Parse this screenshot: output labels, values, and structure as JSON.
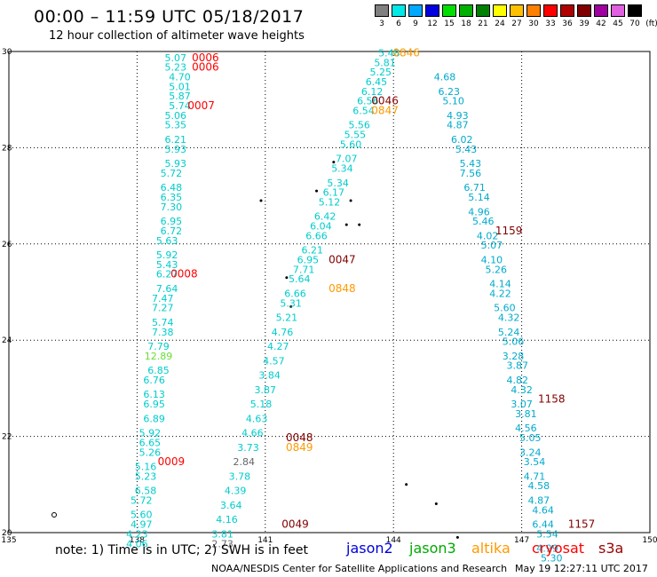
{
  "header": {
    "title": "00:00 – 11:59 UTC 05/18/2017",
    "subtitle": "12 hour collection of altimeter wave heights"
  },
  "color_scale": {
    "unit": "(ft)",
    "bins": [
      {
        "label": "3",
        "color": "#808080"
      },
      {
        "label": "6",
        "color": "#00e8e8"
      },
      {
        "label": "9",
        "color": "#00a8ff"
      },
      {
        "label": "12",
        "color": "#0000e0"
      },
      {
        "label": "15",
        "color": "#00e000"
      },
      {
        "label": "18",
        "color": "#00b000"
      },
      {
        "label": "21",
        "color": "#008000"
      },
      {
        "label": "24",
        "color": "#ffff00"
      },
      {
        "label": "27",
        "color": "#ffc000"
      },
      {
        "label": "30",
        "color": "#ff8000"
      },
      {
        "label": "33",
        "color": "#ff0000"
      },
      {
        "label": "36",
        "color": "#b00000"
      },
      {
        "label": "39",
        "color": "#800000"
      },
      {
        "label": "42",
        "color": "#a000a0"
      },
      {
        "label": "45",
        "color": "#e060e0"
      },
      {
        "label": "70",
        "color": "#000000"
      }
    ]
  },
  "map": {
    "lon_ticks": [
      "135",
      "138",
      "141",
      "144",
      "147",
      "150"
    ],
    "lat_ticks": [
      "20",
      "22",
      "24",
      "26",
      "28",
      "30"
    ]
  },
  "time_labels": [
    {
      "text": "0006",
      "color": "#ff0000",
      "lon": 139.6,
      "lat": 29.8
    },
    {
      "text": "0006",
      "color": "#ff0000",
      "lon": 139.6,
      "lat": 29.6
    },
    {
      "text": "0007",
      "color": "#ff0000",
      "lon": 139.5,
      "lat": 28.8
    },
    {
      "text": "0008",
      "color": "#ff0000",
      "lon": 139.1,
      "lat": 25.3
    },
    {
      "text": "0009",
      "color": "#ff0000",
      "lon": 138.8,
      "lat": 21.4
    },
    {
      "text": "0046",
      "color": "#800000",
      "lon": 143.8,
      "lat": 28.9
    },
    {
      "text": "0047",
      "color": "#800000",
      "lon": 142.8,
      "lat": 25.6
    },
    {
      "text": "0048",
      "color": "#800000",
      "lon": 141.8,
      "lat": 21.9
    },
    {
      "text": "0049",
      "color": "#800000",
      "lon": 141.7,
      "lat": 20.1
    },
    {
      "text": "0846",
      "color": "#ff9900",
      "lon": 144.3,
      "lat": 29.9
    },
    {
      "text": "0847",
      "color": "#ff9900",
      "lon": 143.8,
      "lat": 28.7
    },
    {
      "text": "0848",
      "color": "#ff9900",
      "lon": 142.8,
      "lat": 25.0
    },
    {
      "text": "0849",
      "color": "#ff9900",
      "lon": 141.8,
      "lat": 21.7
    },
    {
      "text": "1159",
      "color": "#800000",
      "lon": 146.7,
      "lat": 26.2
    },
    {
      "text": "1158",
      "color": "#800000",
      "lon": 147.7,
      "lat": 22.7
    },
    {
      "text": "1157",
      "color": "#800000",
      "lon": 148.4,
      "lat": 20.1
    }
  ],
  "tracks": [
    {
      "name": "pass-0006",
      "color": "#00cccc",
      "points": [
        {
          "lon": 138.9,
          "lat": 29.8,
          "swh": "5.07"
        },
        {
          "lon": 138.9,
          "lat": 29.6,
          "swh": "5.23"
        },
        {
          "lon": 139.0,
          "lat": 29.4,
          "swh": "4.70"
        },
        {
          "lon": 139.0,
          "lat": 29.2,
          "swh": "5.01"
        },
        {
          "lon": 139.0,
          "lat": 29.0,
          "swh": "5.87"
        },
        {
          "lon": 139.0,
          "lat": 28.8,
          "swh": "5.74"
        },
        {
          "lon": 138.9,
          "lat": 28.6,
          "swh": "5.06"
        },
        {
          "lon": 138.9,
          "lat": 28.4,
          "swh": "5.35"
        },
        {
          "lon": 138.9,
          "lat": 28.1,
          "swh": "6.21"
        },
        {
          "lon": 138.9,
          "lat": 27.9,
          "swh": "5.93"
        },
        {
          "lon": 138.9,
          "lat": 27.6,
          "swh": "5.93"
        },
        {
          "lon": 138.8,
          "lat": 27.4,
          "swh": "5.72"
        },
        {
          "lon": 138.8,
          "lat": 27.1,
          "swh": "6.48"
        },
        {
          "lon": 138.8,
          "lat": 26.9,
          "swh": "6.35"
        },
        {
          "lon": 138.8,
          "lat": 26.7,
          "swh": "7.30"
        },
        {
          "lon": 138.8,
          "lat": 26.4,
          "swh": "6.95"
        },
        {
          "lon": 138.8,
          "lat": 26.2,
          "swh": "6.72"
        },
        {
          "lon": 138.7,
          "lat": 26.0,
          "swh": "5.63"
        },
        {
          "lon": 138.7,
          "lat": 25.7,
          "swh": "5.92"
        },
        {
          "lon": 138.7,
          "lat": 25.5,
          "swh": "5.43"
        },
        {
          "lon": 138.7,
          "lat": 25.3,
          "swh": "6.27"
        },
        {
          "lon": 138.7,
          "lat": 25.0,
          "swh": "7.64"
        },
        {
          "lon": 138.6,
          "lat": 24.8,
          "swh": "7.47"
        },
        {
          "lon": 138.6,
          "lat": 24.6,
          "swh": "7.27"
        },
        {
          "lon": 138.6,
          "lat": 24.3,
          "swh": "5.74"
        },
        {
          "lon": 138.6,
          "lat": 24.1,
          "swh": "7.38"
        },
        {
          "lon": 138.5,
          "lat": 23.8,
          "swh": "7.79"
        },
        {
          "lon": 138.5,
          "lat": 23.6,
          "swh": "12.89",
          "color": "#66dd33"
        },
        {
          "lon": 138.5,
          "lat": 23.3,
          "swh": "6.85"
        },
        {
          "lon": 138.4,
          "lat": 23.1,
          "swh": "6.76"
        },
        {
          "lon": 138.4,
          "lat": 22.8,
          "swh": "6.13"
        },
        {
          "lon": 138.4,
          "lat": 22.6,
          "swh": "6.95"
        },
        {
          "lon": 138.4,
          "lat": 22.3,
          "swh": "6.89"
        },
        {
          "lon": 138.3,
          "lat": 22.0,
          "swh": "5.92"
        },
        {
          "lon": 138.3,
          "lat": 21.8,
          "swh": "6.65"
        },
        {
          "lon": 138.3,
          "lat": 21.6,
          "swh": "5.26"
        },
        {
          "lon": 138.2,
          "lat": 21.3,
          "swh": "5.16"
        },
        {
          "lon": 138.2,
          "lat": 21.1,
          "swh": "5.23"
        },
        {
          "lon": 138.2,
          "lat": 20.8,
          "swh": "6.58"
        },
        {
          "lon": 138.1,
          "lat": 20.6,
          "swh": "5.72"
        },
        {
          "lon": 138.1,
          "lat": 20.3,
          "swh": "5.60"
        },
        {
          "lon": 138.1,
          "lat": 20.1,
          "swh": "4.97"
        },
        {
          "lon": 138.0,
          "lat": 19.9,
          "swh": "4.23"
        },
        {
          "lon": 138.0,
          "lat": 19.7,
          "swh": "4.06"
        }
      ]
    },
    {
      "name": "pass-0046",
      "color": "#00cccc",
      "points": [
        {
          "lon": 143.9,
          "lat": 29.9,
          "swh": "5.48"
        },
        {
          "lon": 143.8,
          "lat": 29.7,
          "swh": "5.81"
        },
        {
          "lon": 143.7,
          "lat": 29.5,
          "swh": "5.25"
        },
        {
          "lon": 143.6,
          "lat": 29.3,
          "swh": "6.45"
        },
        {
          "lon": 143.5,
          "lat": 29.1,
          "swh": "6.12"
        },
        {
          "lon": 143.4,
          "lat": 28.9,
          "swh": "6.56"
        },
        {
          "lon": 143.3,
          "lat": 28.7,
          "swh": "6.54"
        },
        {
          "lon": 143.2,
          "lat": 28.4,
          "swh": "5.56"
        },
        {
          "lon": 143.1,
          "lat": 28.2,
          "swh": "5.55"
        },
        {
          "lon": 143.0,
          "lat": 28.0,
          "swh": "5.60"
        },
        {
          "lon": 142.9,
          "lat": 27.7,
          "swh": "7.07"
        },
        {
          "lon": 142.8,
          "lat": 27.5,
          "swh": "5.34"
        },
        {
          "lon": 142.7,
          "lat": 27.2,
          "swh": "5.34"
        },
        {
          "lon": 142.6,
          "lat": 27.0,
          "swh": "6.17"
        },
        {
          "lon": 142.5,
          "lat": 26.8,
          "swh": "5.12"
        },
        {
          "lon": 142.4,
          "lat": 26.5,
          "swh": "6.42"
        },
        {
          "lon": 142.3,
          "lat": 26.3,
          "swh": "6.04"
        },
        {
          "lon": 142.2,
          "lat": 26.1,
          "swh": "6.66"
        },
        {
          "lon": 142.1,
          "lat": 25.8,
          "swh": "6.21"
        },
        {
          "lon": 142.0,
          "lat": 25.6,
          "swh": "6.95"
        },
        {
          "lon": 141.9,
          "lat": 25.4,
          "swh": "7.71"
        },
        {
          "lon": 141.8,
          "lat": 25.2,
          "swh": "5.64"
        },
        {
          "lon": 141.7,
          "lat": 24.9,
          "swh": "6.66"
        },
        {
          "lon": 141.6,
          "lat": 24.7,
          "swh": "5.31"
        },
        {
          "lon": 141.5,
          "lat": 24.4,
          "swh": "5.21"
        },
        {
          "lon": 141.4,
          "lat": 24.1,
          "swh": "4.76"
        },
        {
          "lon": 141.3,
          "lat": 23.8,
          "swh": "4.27"
        },
        {
          "lon": 141.2,
          "lat": 23.5,
          "swh": "4.57"
        },
        {
          "lon": 141.1,
          "lat": 23.2,
          "swh": "3.84"
        },
        {
          "lon": 141.0,
          "lat": 22.9,
          "swh": "3.87"
        },
        {
          "lon": 140.9,
          "lat": 22.6,
          "swh": "5.18"
        },
        {
          "lon": 140.8,
          "lat": 22.3,
          "swh": "4.63"
        },
        {
          "lon": 140.7,
          "lat": 22.0,
          "swh": "4.66"
        },
        {
          "lon": 140.6,
          "lat": 21.7,
          "swh": "3.73"
        },
        {
          "lon": 140.5,
          "lat": 21.4,
          "swh": "2.84",
          "color": "#666666"
        },
        {
          "lon": 140.4,
          "lat": 21.1,
          "swh": "3.78"
        },
        {
          "lon": 140.3,
          "lat": 20.8,
          "swh": "4.39"
        },
        {
          "lon": 140.2,
          "lat": 20.5,
          "swh": "3.64"
        },
        {
          "lon": 140.1,
          "lat": 20.2,
          "swh": "4.16"
        },
        {
          "lon": 140.0,
          "lat": 19.9,
          "swh": "3.81"
        },
        {
          "lon": 140.0,
          "lat": 19.7,
          "swh": "2.73",
          "color": "#666666"
        }
      ]
    },
    {
      "name": "pass-1159",
      "color": "#00aacc",
      "points": [
        {
          "lon": 145.2,
          "lat": 29.4,
          "swh": "4.68"
        },
        {
          "lon": 145.3,
          "lat": 29.1,
          "swh": "6.23"
        },
        {
          "lon": 145.4,
          "lat": 28.9,
          "swh": "5.10"
        },
        {
          "lon": 145.5,
          "lat": 28.6,
          "swh": "4.93"
        },
        {
          "lon": 145.5,
          "lat": 28.4,
          "swh": "4.87"
        },
        {
          "lon": 145.6,
          "lat": 28.1,
          "swh": "6.02"
        },
        {
          "lon": 145.7,
          "lat": 27.9,
          "swh": "5.43"
        },
        {
          "lon": 145.8,
          "lat": 27.6,
          "swh": "5.43"
        },
        {
          "lon": 145.8,
          "lat": 27.4,
          "swh": "7.56"
        },
        {
          "lon": 145.9,
          "lat": 27.1,
          "swh": "6.71"
        },
        {
          "lon": 146.0,
          "lat": 26.9,
          "swh": "5.14"
        },
        {
          "lon": 146.0,
          "lat": 26.6,
          "swh": "4.96"
        },
        {
          "lon": 146.1,
          "lat": 26.4,
          "swh": "5.46"
        },
        {
          "lon": 146.2,
          "lat": 26.1,
          "swh": "4.02"
        },
        {
          "lon": 146.3,
          "lat": 25.9,
          "swh": "5.07"
        },
        {
          "lon": 146.3,
          "lat": 25.6,
          "swh": "4.10"
        },
        {
          "lon": 146.4,
          "lat": 25.4,
          "swh": "5.26"
        },
        {
          "lon": 146.5,
          "lat": 25.1,
          "swh": "4.14"
        },
        {
          "lon": 146.5,
          "lat": 24.9,
          "swh": "4.22"
        },
        {
          "lon": 146.6,
          "lat": 24.6,
          "swh": "5.60"
        },
        {
          "lon": 146.7,
          "lat": 24.4,
          "swh": "4.32"
        },
        {
          "lon": 146.7,
          "lat": 24.1,
          "swh": "5.24"
        },
        {
          "lon": 146.8,
          "lat": 23.9,
          "swh": "5.06"
        },
        {
          "lon": 146.8,
          "lat": 23.6,
          "swh": "3.28"
        },
        {
          "lon": 146.9,
          "lat": 23.4,
          "swh": "3.87"
        },
        {
          "lon": 146.9,
          "lat": 23.1,
          "swh": "4.82"
        },
        {
          "lon": 147.0,
          "lat": 22.9,
          "swh": "4.32"
        },
        {
          "lon": 147.0,
          "lat": 22.6,
          "swh": "3.07"
        },
        {
          "lon": 147.1,
          "lat": 22.4,
          "swh": "3.81"
        },
        {
          "lon": 147.1,
          "lat": 22.1,
          "swh": "4.56"
        },
        {
          "lon": 147.2,
          "lat": 21.9,
          "swh": "5.05"
        },
        {
          "lon": 147.2,
          "lat": 21.6,
          "swh": "3.24"
        },
        {
          "lon": 147.3,
          "lat": 21.4,
          "swh": "3.54"
        },
        {
          "lon": 147.3,
          "lat": 21.1,
          "swh": "4.71"
        },
        {
          "lon": 147.4,
          "lat": 20.9,
          "swh": "4.58"
        },
        {
          "lon": 147.4,
          "lat": 20.6,
          "swh": "4.87"
        },
        {
          "lon": 147.5,
          "lat": 20.4,
          "swh": "4.64"
        },
        {
          "lon": 147.5,
          "lat": 20.1,
          "swh": "6.44"
        },
        {
          "lon": 147.6,
          "lat": 19.9,
          "swh": "5.54"
        },
        {
          "lon": 147.6,
          "lat": 19.6,
          "swh": "4.99"
        },
        {
          "lon": 147.7,
          "lat": 19.4,
          "swh": "5.30"
        }
      ]
    }
  ],
  "footer": {
    "note": "note:  1) Time is in UTC;  2) SWH is in feet",
    "legend": [
      {
        "label": "jason2",
        "color": "#0000dd"
      },
      {
        "label": "jason3",
        "color": "#00aa00"
      },
      {
        "label": "altika",
        "color": "#ff9900"
      },
      {
        "label": "cryosat",
        "color": "#ff0000"
      },
      {
        "label": "s3a",
        "color": "#990000"
      }
    ],
    "credit": "NOAA/NESDIS Center for Satellite Applications and Research",
    "timestamp": "May 19 12:27:11 UTC 2017"
  }
}
